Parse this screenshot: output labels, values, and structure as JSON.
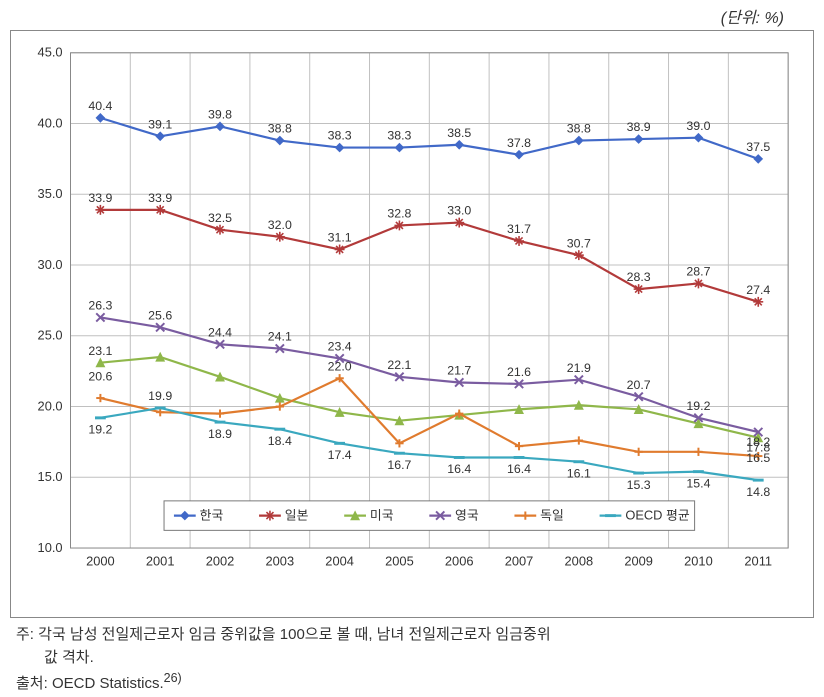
{
  "unit_label": "(단위: %)",
  "chart": {
    "type": "line",
    "categories": [
      "2000",
      "2001",
      "2002",
      "2003",
      "2004",
      "2005",
      "2006",
      "2007",
      "2008",
      "2009",
      "2010",
      "2011"
    ],
    "ylim": [
      10.0,
      45.0
    ],
    "ytick_step": 5.0,
    "y_decimals": 1,
    "background_color": "#ffffff",
    "grid_color": "#c0c0c0",
    "axis_color": "#888888",
    "tick_font_size": 13,
    "label_font_size": 12.5,
    "line_width": 2.2,
    "marker_size": 4.2,
    "series": [
      {
        "name": "한국",
        "color": "#4169c8",
        "marker": "diamond",
        "values": [
          40.4,
          39.1,
          39.8,
          38.8,
          38.3,
          38.3,
          38.5,
          37.8,
          38.8,
          38.9,
          39.0,
          37.5
        ],
        "label_pos": "above"
      },
      {
        "name": "일본",
        "color": "#b23a3a",
        "marker": "star",
        "values": [
          33.9,
          33.9,
          32.5,
          32.0,
          31.1,
          32.8,
          33.0,
          31.7,
          30.7,
          28.3,
          28.7,
          27.4
        ],
        "label_pos": "above"
      },
      {
        "name": "미국",
        "color": "#8fb74a",
        "marker": "triangle",
        "values": [
          23.1,
          23.5,
          22.1,
          20.6,
          19.6,
          19.0,
          19.4,
          19.8,
          20.1,
          19.8,
          18.8,
          17.8
        ],
        "label_pos": "mixed"
      },
      {
        "name": "영국",
        "color": "#7a5ca0",
        "marker": "x",
        "values": [
          26.3,
          25.6,
          24.4,
          24.1,
          23.4,
          22.1,
          21.7,
          21.6,
          21.9,
          20.7,
          19.2,
          18.2
        ],
        "label_pos": "above"
      },
      {
        "name": "독일",
        "color": "#e07b2e",
        "marker": "plus",
        "values": [
          20.6,
          19.6,
          19.5,
          20.0,
          22.0,
          17.4,
          19.5,
          17.2,
          17.6,
          16.8,
          16.8,
          16.5
        ],
        "label_pos": "mixed"
      },
      {
        "name": "OECD 평균",
        "color": "#3aa8bf",
        "marker": "dash",
        "values": [
          19.2,
          19.9,
          18.9,
          18.4,
          17.4,
          16.7,
          16.4,
          16.4,
          16.1,
          15.3,
          15.4,
          14.8
        ],
        "label_pos": "below"
      }
    ],
    "legend": {
      "position": "bottom-center",
      "border_color": "#777777",
      "bg_color": "#ffffff"
    }
  },
  "footnote_prefix": "주: ",
  "footnote_line1": "각국 남성 전일제근로자 임금 중위값을 100으로 볼 때, 남녀 전일제근로자 임금중위",
  "footnote_line2": "값 격차.",
  "source_prefix": "출처: ",
  "source_text": "OECD Statistics.",
  "source_sup": "26)"
}
